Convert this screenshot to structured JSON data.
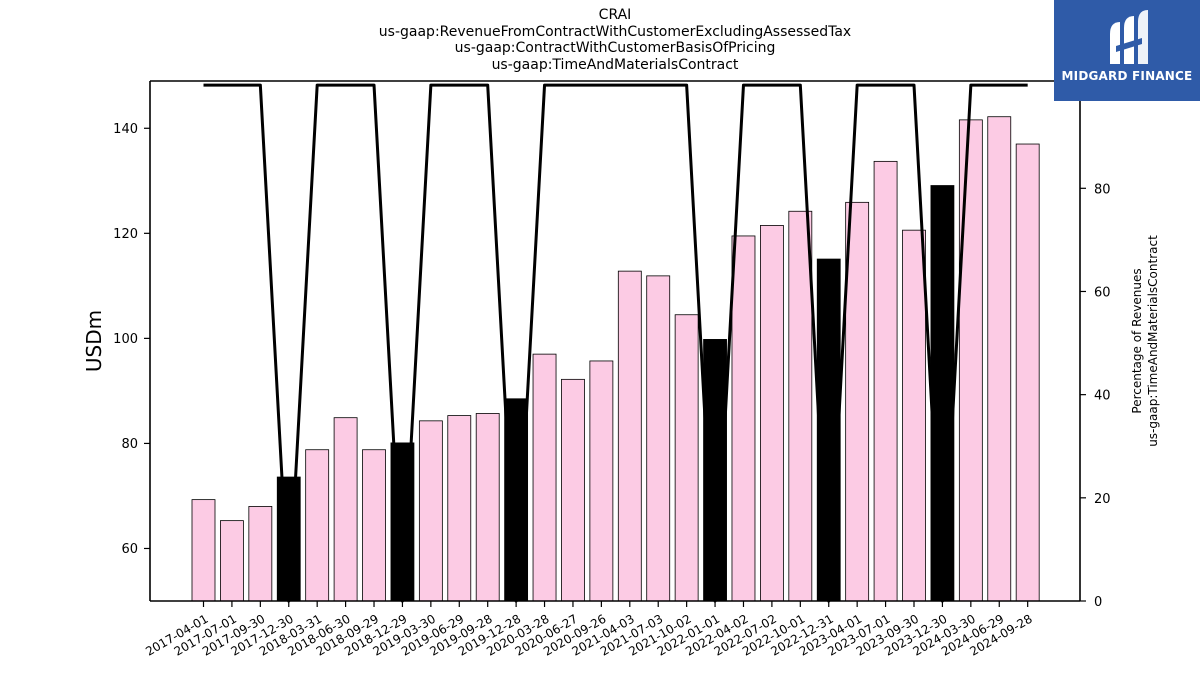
{
  "header": {
    "lines": [
      "CRAI",
      "us-gaap:RevenueFromContractWithCustomerExcludingAssessedTax",
      "us-gaap:ContractWithCustomerBasisOfPricing",
      "us-gaap:TimeAndMaterialsContract"
    ]
  },
  "logo": {
    "text": "MIDGARD FINANCE",
    "icon": "midgard-logo-icon",
    "background": "#2f5ba8"
  },
  "chart_data": {
    "type": "bar",
    "categories": [
      "2017-04-01",
      "2017-07-01",
      "2017-09-30",
      "2017-12-30",
      "2018-03-31",
      "2018-06-30",
      "2018-09-29",
      "2018-12-29",
      "2019-03-30",
      "2019-06-29",
      "2019-09-28",
      "2019-12-28",
      "2020-03-28",
      "2020-06-27",
      "2020-09-26",
      "2021-04-03",
      "2021-07-03",
      "2021-10-02",
      "2022-01-01",
      "2022-04-02",
      "2022-07-02",
      "2022-10-01",
      "2022-12-31",
      "2023-04-01",
      "2023-07-01",
      "2023-09-30",
      "2023-12-30",
      "2024-03-30",
      "2024-06-29",
      "2024-09-28"
    ],
    "series": [
      {
        "axis": "left",
        "kind": "bar",
        "values": [
          69.3,
          65.3,
          68.0,
          73.6,
          78.8,
          84.9,
          78.8,
          80.1,
          84.3,
          85.3,
          85.7,
          88.5,
          97.0,
          92.2,
          95.7,
          112.8,
          111.9,
          104.5,
          99.8,
          119.5,
          121.5,
          124.2,
          115.1,
          125.9,
          133.7,
          120.6,
          129.1,
          141.6,
          142.2,
          137.0
        ],
        "colors": [
          "#fccbe4",
          "#fccbe4",
          "#fccbe4",
          "#000000",
          "#fccbe4",
          "#fccbe4",
          "#fccbe4",
          "#000000",
          "#fccbe4",
          "#fccbe4",
          "#fccbe4",
          "#000000",
          "#fccbe4",
          "#fccbe4",
          "#fccbe4",
          "#fccbe4",
          "#fccbe4",
          "#fccbe4",
          "#000000",
          "#fccbe4",
          "#fccbe4",
          "#fccbe4",
          "#000000",
          "#fccbe4",
          "#fccbe4",
          "#fccbe4",
          "#000000",
          "#fccbe4",
          "#fccbe4",
          "#fccbe4"
        ]
      },
      {
        "axis": "right",
        "kind": "line",
        "color": "#000000",
        "values": [
          100,
          100,
          100,
          0,
          100,
          100,
          100,
          0,
          100,
          100,
          100,
          0,
          100,
          100,
          100,
          100,
          100,
          100,
          0,
          100,
          100,
          100,
          0,
          100,
          100,
          100,
          0,
          100,
          100,
          100
        ]
      }
    ],
    "ylabel": "USDm",
    "ylabel_right": [
      "Percentage of Revenues",
      "us-gaap:TimeAndMaterialsContract"
    ],
    "ylim": [
      50,
      149
    ],
    "ylim_right": [
      0,
      100.8
    ],
    "yticks": [
      60,
      80,
      100,
      120,
      140
    ],
    "yticks_right": [
      0,
      20,
      40,
      60,
      80,
      100
    ],
    "grid": false,
    "legend": "none"
  }
}
